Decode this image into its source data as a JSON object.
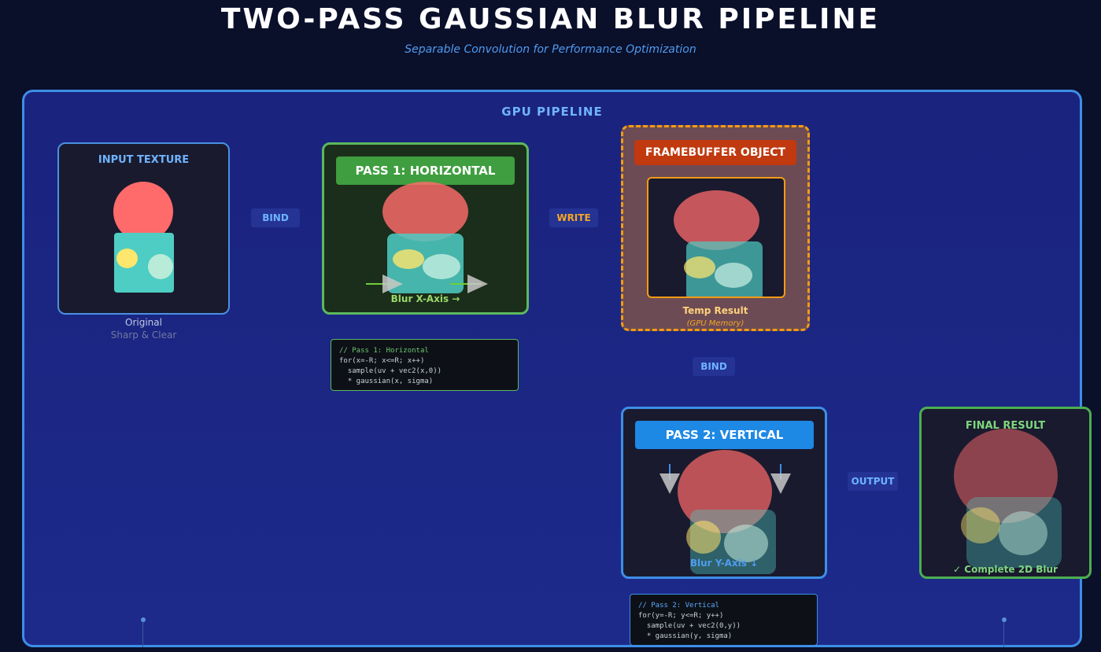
{
  "header": {
    "title": "TWO-PASS GAUSSIAN BLUR PIPELINE",
    "subtitle": "Separable Convolution for Performance Optimization"
  },
  "pipeline": {
    "label": "GPU PIPELINE",
    "input": {
      "label": "INPUT TEXTURE",
      "caption": "Original",
      "subcaption": "Sharp & Clear"
    },
    "pass1": {
      "label": "PASS 1: HORIZONTAL",
      "axis_label": "Blur X-Axis →"
    },
    "fbo": {
      "label": "FRAMEBUFFER OBJECT",
      "caption": "Temp Result",
      "subcaption": "(GPU Memory)"
    },
    "pass2": {
      "label": "PASS 2: VERTICAL",
      "axis_label": "Blur Y-Axis ↓"
    },
    "final": {
      "label": "FINAL RESULT",
      "caption": "✓ Complete 2D Blur"
    },
    "connectors": {
      "bind1": "BIND",
      "write": "WRITE",
      "bind2": "BIND",
      "output": "OUTPUT"
    },
    "code1": {
      "comment": "// Pass 1: Horizontal",
      "line1": "for(x=-R; x<=R; x++)",
      "line2": "  sample(uv + vec2(x,0))",
      "line3": "  * gaussian(x, sigma)"
    },
    "code2": {
      "comment": "// Pass 2: Vertical",
      "line1": "for(y=-R; y<=R; y++)",
      "line2": "  sample(uv + vec2(0,y))",
      "line3": "  * gaussian(y, sigma)"
    }
  },
  "colors": {
    "pass1_border": "#5cb85c",
    "pass2_border": "#3d8ee6",
    "fbo_border": "#f39c12",
    "shape_red": "#ff6b6b",
    "shape_teal": "#4ecdc4",
    "shape_yellow": "#ffe66d"
  }
}
